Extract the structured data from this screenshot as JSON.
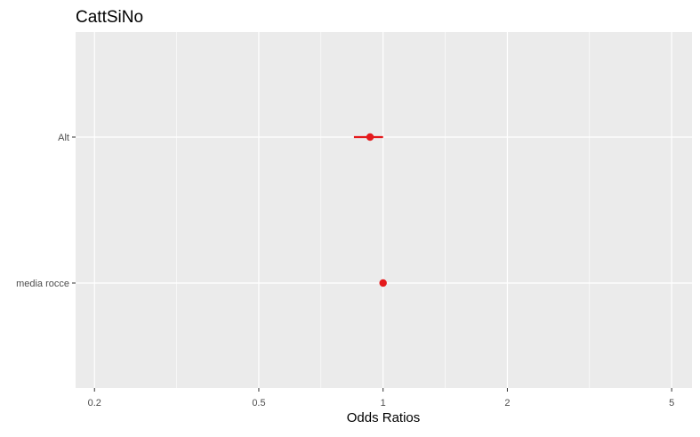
{
  "chart_data": {
    "type": "forest",
    "title": "CattSiNo",
    "xlabel": "Odds Ratios",
    "ylabel": "",
    "x_scale": "log",
    "xlim": [
      0.18,
      5.6
    ],
    "x_ticks": [
      0.2,
      0.5,
      1,
      2,
      5
    ],
    "x_tick_labels": [
      "0.2",
      "0.5",
      "1",
      "2",
      "5"
    ],
    "x_minor_gridlines": [
      0.316,
      0.707,
      1.414,
      3.162
    ],
    "grid": true,
    "legend": "none",
    "point_color": "#e41a1c",
    "panel_color": "#ebebeb",
    "categories": [
      "Alt",
      "media rocce"
    ],
    "estimates": [
      {
        "label": "Alt",
        "or": 0.93,
        "ci_low": 0.85,
        "ci_high": 1.0
      },
      {
        "label": "media rocce",
        "or": 1.0,
        "ci_low": 0.995,
        "ci_high": 1.005
      }
    ]
  }
}
